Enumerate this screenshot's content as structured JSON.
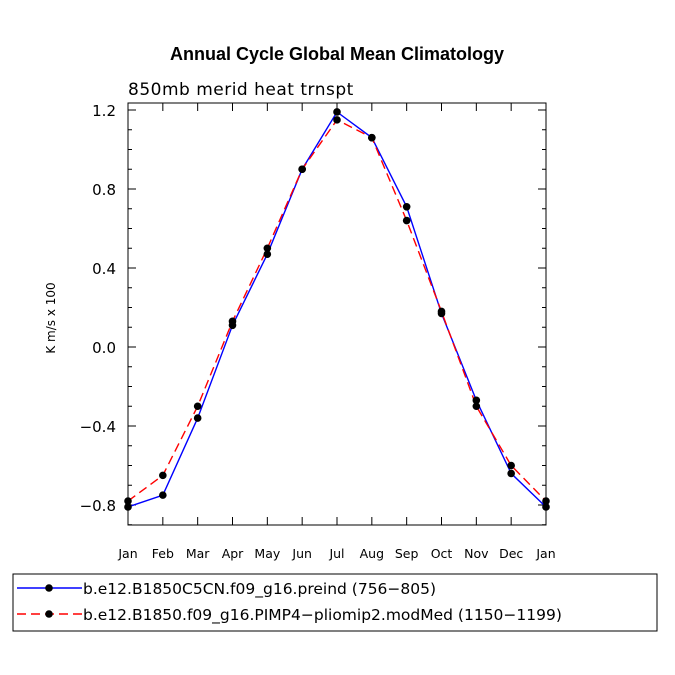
{
  "chart_data": {
    "type": "line",
    "title": "Annual Cycle Global Mean Climatology",
    "subtitle": "850mb merid heat trnspt",
    "xlabel": "",
    "ylabel": "K m/s x 100",
    "categories": [
      "Jan",
      "Feb",
      "Mar",
      "Apr",
      "May",
      "Jun",
      "Jul",
      "Aug",
      "Sep",
      "Oct",
      "Nov",
      "Dec",
      "Jan"
    ],
    "ylim": [
      -0.9,
      1.2
    ],
    "y_ticks": [
      -0.8,
      -0.4,
      0.0,
      0.4,
      0.8,
      1.2
    ],
    "y_tick_labels": [
      "−0.8",
      "−0.4",
      "0.0",
      "0.4",
      "0.8",
      "1.2"
    ],
    "series": [
      {
        "name": "b.e12.B1850C5CN.f09_g16.preind (756−805)",
        "color": "#0000ff",
        "dash": "solid",
        "values": [
          -0.81,
          -0.75,
          -0.36,
          0.11,
          0.47,
          0.9,
          1.19,
          1.06,
          0.71,
          0.17,
          -0.27,
          -0.64,
          -0.81
        ]
      },
      {
        "name": "b.e12.B1850.f09_g16.PIMP4−pliomip2.modMed (1150−1199)",
        "color": "#ff0000",
        "dash": "dashed",
        "values": [
          -0.78,
          -0.65,
          -0.3,
          0.13,
          0.5,
          0.9,
          1.15,
          1.06,
          0.64,
          0.18,
          -0.3,
          -0.6,
          -0.78
        ]
      }
    ],
    "marker_color": "#000000",
    "legend_position": "bottom"
  }
}
